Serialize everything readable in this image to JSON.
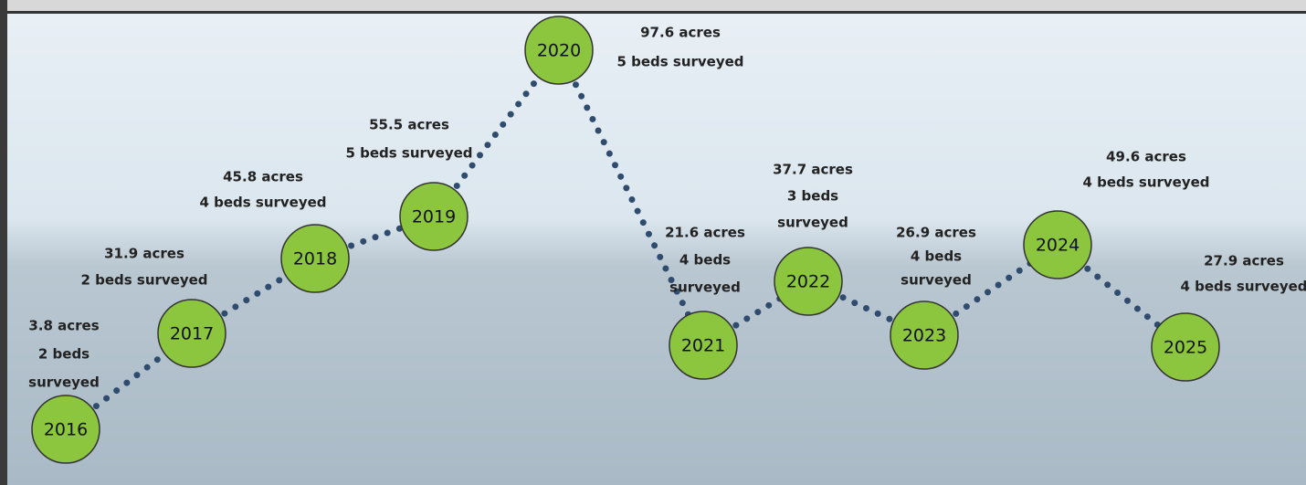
{
  "nodes": [
    {
      "year": "2016",
      "lines": [
        "3.8 acres",
        "2 beds",
        "surveyed"
      ]
    },
    {
      "year": "2017",
      "lines": [
        "31.9 acres",
        "2 beds surveyed"
      ]
    },
    {
      "year": "2018",
      "lines": [
        "45.8 acres",
        "4 beds surveyed"
      ]
    },
    {
      "year": "2019",
      "lines": [
        "55.5 acres",
        "5 beds surveyed"
      ]
    },
    {
      "year": "2020",
      "lines": [
        "97.6 acres",
        "5 beds surveyed"
      ]
    },
    {
      "year": "2021",
      "lines": [
        "21.6 acres",
        "4 beds",
        "surveyed"
      ]
    },
    {
      "year": "2022",
      "lines": [
        "37.7 acres",
        "3 beds",
        "surveyed"
      ]
    },
    {
      "year": "2023",
      "lines": [
        "26.9 acres",
        "4 beds",
        "surveyed"
      ]
    },
    {
      "year": "2024",
      "lines": [
        "49.6 acres",
        "4 beds surveyed"
      ]
    },
    {
      "year": "2025",
      "lines": [
        "27.9 acres",
        "4 beds surveyed"
      ]
    }
  ]
}
